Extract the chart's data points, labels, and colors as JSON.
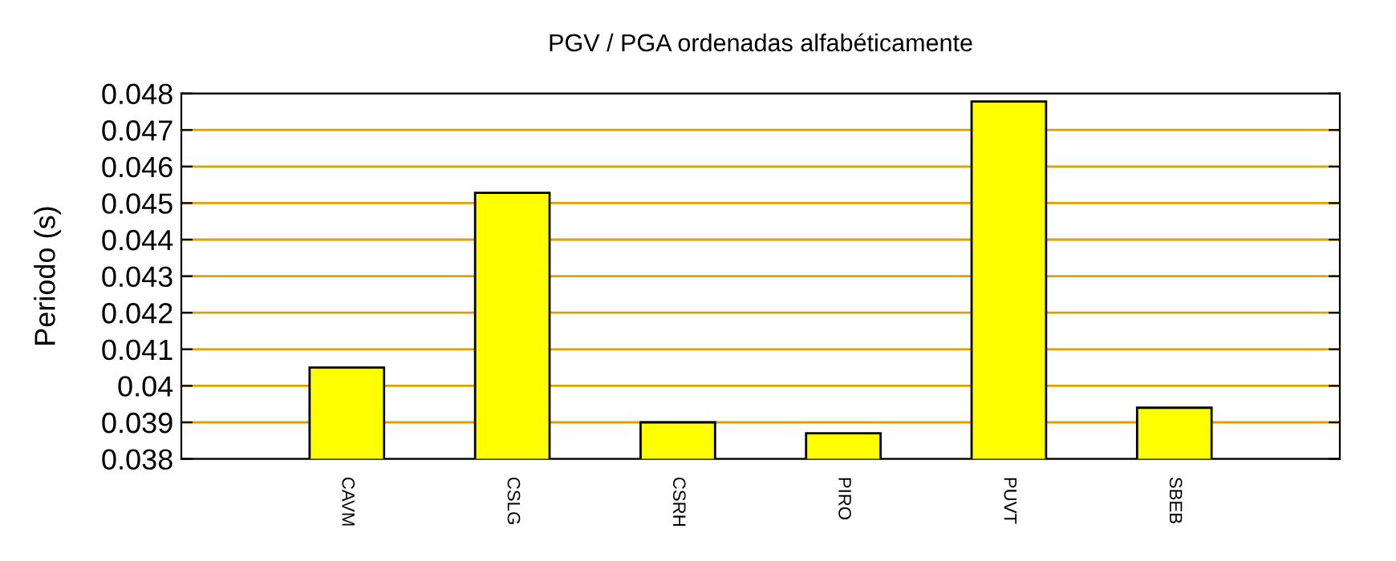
{
  "chart_data": {
    "type": "bar",
    "title": "PGV / PGA ordenadas alfabéticamente",
    "ylabel": "Periodo (s)",
    "categories": [
      "CAVM",
      "CSLG",
      "CSRH",
      "PIRO",
      "PUVT",
      "SBEB"
    ],
    "values": [
      0.0405,
      0.04528,
      0.039,
      0.0387,
      0.04778,
      0.0394
    ],
    "color": "#ffff00",
    "ylim": [
      0.038,
      0.048
    ],
    "yticks": [
      0.038,
      0.039,
      0.04,
      0.041,
      0.042,
      0.043,
      0.044,
      0.045,
      0.046,
      0.047,
      0.048
    ],
    "grid": "y"
  }
}
